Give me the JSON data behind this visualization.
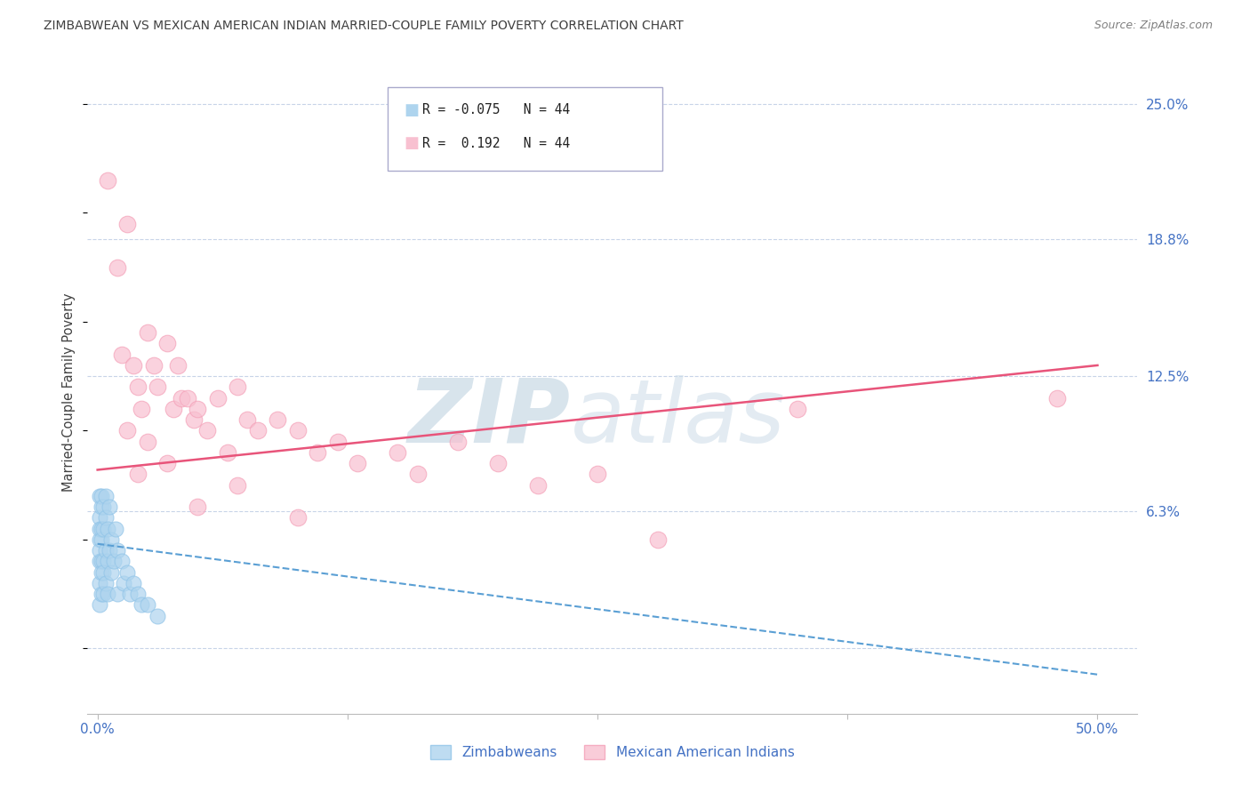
{
  "title": "ZIMBABWEAN VS MEXICAN AMERICAN INDIAN MARRIED-COUPLE FAMILY POVERTY CORRELATION CHART",
  "source": "Source: ZipAtlas.com",
  "ylabel": "Married-Couple Family Poverty",
  "xlim": [
    -0.005,
    0.52
  ],
  "ylim": [
    -0.03,
    0.265
  ],
  "plot_xlim": [
    0.0,
    0.5
  ],
  "plot_ylim": [
    0.0,
    0.25
  ],
  "r_zimbabwean": -0.075,
  "n_zimbabwean": 44,
  "r_mexican": 0.192,
  "n_mexican": 44,
  "blue_color": "#91c4e8",
  "blue_fill": "#aed4ee",
  "pink_color": "#f4a0b8",
  "pink_fill": "#f8c0d0",
  "blue_line_color": "#5a9fd4",
  "pink_line_color": "#e8547a",
  "axis_label_color": "#4472c4",
  "title_color": "#404040",
  "source_color": "#808080",
  "grid_color": "#c8d4e8",
  "background_color": "#ffffff",
  "zimbabwean_x": [
    0.001,
    0.001,
    0.001,
    0.001,
    0.001,
    0.001,
    0.001,
    0.001,
    0.002,
    0.002,
    0.002,
    0.002,
    0.002,
    0.002,
    0.002,
    0.003,
    0.003,
    0.003,
    0.003,
    0.003,
    0.004,
    0.004,
    0.004,
    0.004,
    0.005,
    0.005,
    0.005,
    0.006,
    0.006,
    0.007,
    0.007,
    0.008,
    0.009,
    0.01,
    0.01,
    0.012,
    0.013,
    0.015,
    0.016,
    0.018,
    0.02,
    0.022,
    0.025,
    0.03
  ],
  "zimbabwean_y": [
    0.04,
    0.05,
    0.06,
    0.03,
    0.07,
    0.02,
    0.045,
    0.055,
    0.04,
    0.055,
    0.065,
    0.035,
    0.05,
    0.07,
    0.025,
    0.04,
    0.055,
    0.065,
    0.035,
    0.025,
    0.045,
    0.06,
    0.03,
    0.07,
    0.04,
    0.055,
    0.025,
    0.045,
    0.065,
    0.05,
    0.035,
    0.04,
    0.055,
    0.045,
    0.025,
    0.04,
    0.03,
    0.035,
    0.025,
    0.03,
    0.025,
    0.02,
    0.02,
    0.015
  ],
  "mexican_x": [
    0.005,
    0.01,
    0.012,
    0.015,
    0.018,
    0.02,
    0.022,
    0.025,
    0.028,
    0.03,
    0.035,
    0.038,
    0.04,
    0.042,
    0.045,
    0.048,
    0.05,
    0.055,
    0.06,
    0.065,
    0.07,
    0.075,
    0.08,
    0.09,
    0.1,
    0.11,
    0.12,
    0.13,
    0.15,
    0.16,
    0.18,
    0.2,
    0.22,
    0.25,
    0.28,
    0.015,
    0.02,
    0.025,
    0.035,
    0.05,
    0.07,
    0.1,
    0.35,
    0.48
  ],
  "mexican_y": [
    0.215,
    0.175,
    0.135,
    0.195,
    0.13,
    0.12,
    0.11,
    0.145,
    0.13,
    0.12,
    0.14,
    0.11,
    0.13,
    0.115,
    0.115,
    0.105,
    0.11,
    0.1,
    0.115,
    0.09,
    0.12,
    0.105,
    0.1,
    0.105,
    0.1,
    0.09,
    0.095,
    0.085,
    0.09,
    0.08,
    0.095,
    0.085,
    0.075,
    0.08,
    0.05,
    0.1,
    0.08,
    0.095,
    0.085,
    0.065,
    0.075,
    0.06,
    0.11,
    0.115
  ],
  "zim_line_x0": 0.0,
  "zim_line_x1": 0.5,
  "zim_line_y0": 0.048,
  "zim_line_y1": -0.012,
  "mex_line_x0": 0.0,
  "mex_line_x1": 0.5,
  "mex_line_y0": 0.082,
  "mex_line_y1": 0.13,
  "ytick_vals": [
    0.0,
    0.063,
    0.125,
    0.188,
    0.25
  ],
  "ytick_labels": [
    "",
    "6.3%",
    "12.5%",
    "18.8%",
    "25.0%"
  ],
  "xtick_vals": [
    0.0,
    0.125,
    0.25,
    0.375,
    0.5
  ],
  "xtick_labels": [
    "0.0%",
    "",
    "",
    "",
    "50.0%"
  ],
  "legend_r1": "R = -0.075   N = 44",
  "legend_r2": "R =  0.192   N = 44",
  "watermark_zip": "ZIP",
  "watermark_atlas": "atlas"
}
